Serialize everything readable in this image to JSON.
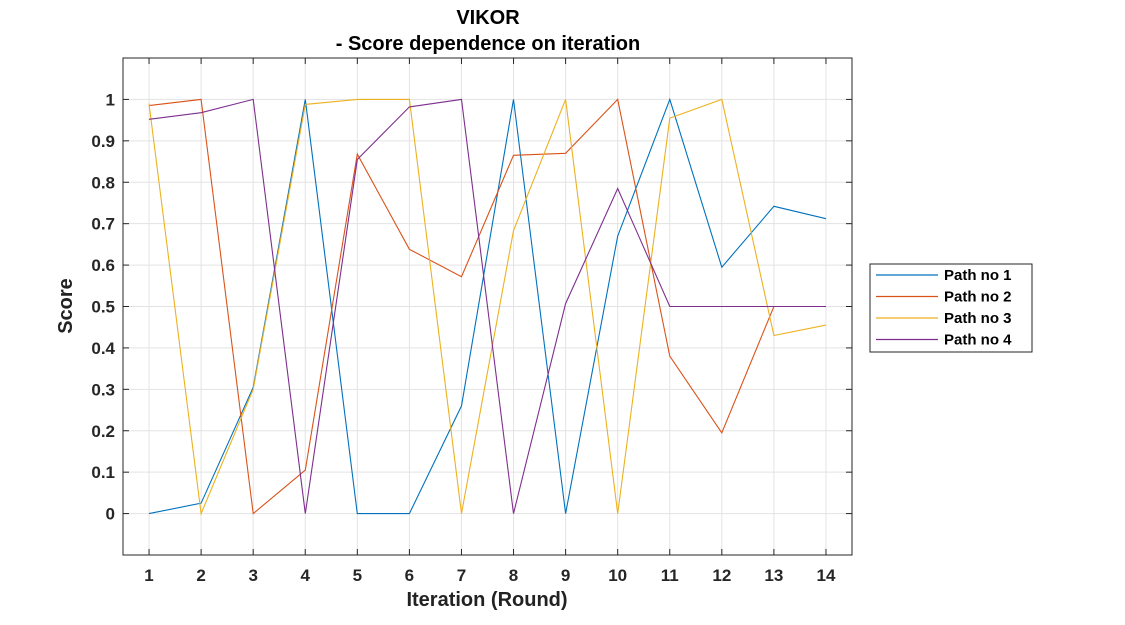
{
  "chart_data": {
    "type": "line",
    "title": "VIKOR",
    "subtitle": "- Score dependence on iteration",
    "xlabel": "Iteration (Round)",
    "ylabel": "Score",
    "x": [
      1,
      2,
      3,
      4,
      5,
      6,
      7,
      8,
      9,
      10,
      11,
      12,
      13,
      14
    ],
    "xlim": [
      0.5,
      14.5
    ],
    "ylim": [
      -0.1,
      1.1
    ],
    "xticks": [
      "1",
      "2",
      "3",
      "4",
      "5",
      "6",
      "7",
      "8",
      "9",
      "10",
      "11",
      "12",
      "13",
      "14"
    ],
    "yticks": [
      "0",
      "0.1",
      "0.2",
      "0.3",
      "0.4",
      "0.5",
      "0.6",
      "0.7",
      "0.8",
      "0.9",
      "1"
    ],
    "grid": true,
    "legend_position": "outside-right",
    "series": [
      {
        "name": "Path no 1",
        "color": "#0072BD",
        "values": [
          0,
          0.025,
          0.305,
          1,
          0,
          0,
          0.26,
          1,
          0,
          0.67,
          1,
          0.595,
          0.742,
          0.712
        ]
      },
      {
        "name": "Path no 2",
        "color": "#D95319",
        "values": [
          0.985,
          1,
          0,
          0.105,
          0.868,
          0.638,
          0.572,
          0.865,
          0.87,
          1,
          0.38,
          0.195,
          0.5,
          0.5
        ]
      },
      {
        "name": "Path no 3",
        "color": "#EDB120",
        "values": [
          0.99,
          0,
          0.3,
          0.988,
          1,
          1,
          0,
          0.683,
          1,
          0,
          0.955,
          1,
          0.43,
          0.455
        ]
      },
      {
        "name": "Path no 4",
        "color": "#7E2F8E",
        "values": [
          0.952,
          0.968,
          1,
          0,
          0.855,
          0.982,
          1,
          0,
          0.507,
          0.785,
          0.5,
          0.5,
          0.5,
          0.5
        ]
      }
    ]
  }
}
